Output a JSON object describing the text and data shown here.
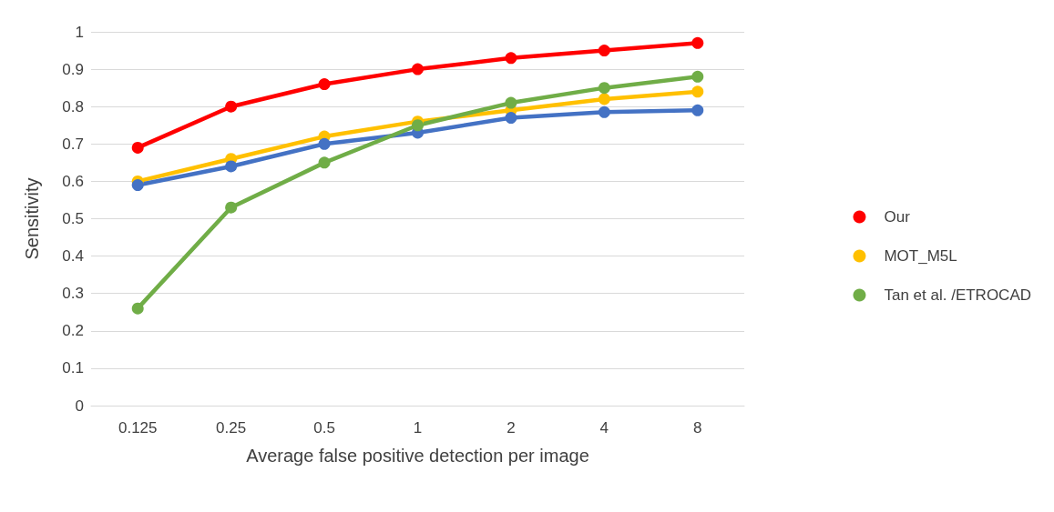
{
  "chart_data": {
    "type": "line",
    "xlabel": "Average false positive detection per image",
    "ylabel": "Sensitivity",
    "categories": [
      "0.125",
      "0.25",
      "0.5",
      "1",
      "2",
      "4",
      "8"
    ],
    "series": [
      {
        "name": "Our",
        "color": "#ff0000",
        "values": [
          0.69,
          0.8,
          0.86,
          0.9,
          0.93,
          0.95,
          0.97
        ]
      },
      {
        "name": "MOT_M5L",
        "color": "#ffc000",
        "values": [
          0.6,
          0.66,
          0.72,
          0.76,
          0.79,
          0.82,
          0.84
        ]
      },
      {
        "color": "#4472c4",
        "values": [
          0.59,
          0.64,
          0.7,
          0.73,
          0.77,
          0.785,
          0.79
        ]
      },
      {
        "name": "Tan et al. /ETROCAD",
        "color": "#70ad47",
        "values": [
          0.26,
          0.53,
          0.65,
          0.75,
          0.81,
          0.85,
          0.88
        ]
      }
    ],
    "ylim": [
      0,
      1
    ],
    "yticks": [
      0,
      0.1,
      0.2,
      0.3,
      0.4,
      0.5,
      0.6,
      0.7,
      0.8,
      0.9,
      1
    ],
    "grid": "y",
    "legend": "right",
    "marker": "circle",
    "line_style": "solid"
  }
}
